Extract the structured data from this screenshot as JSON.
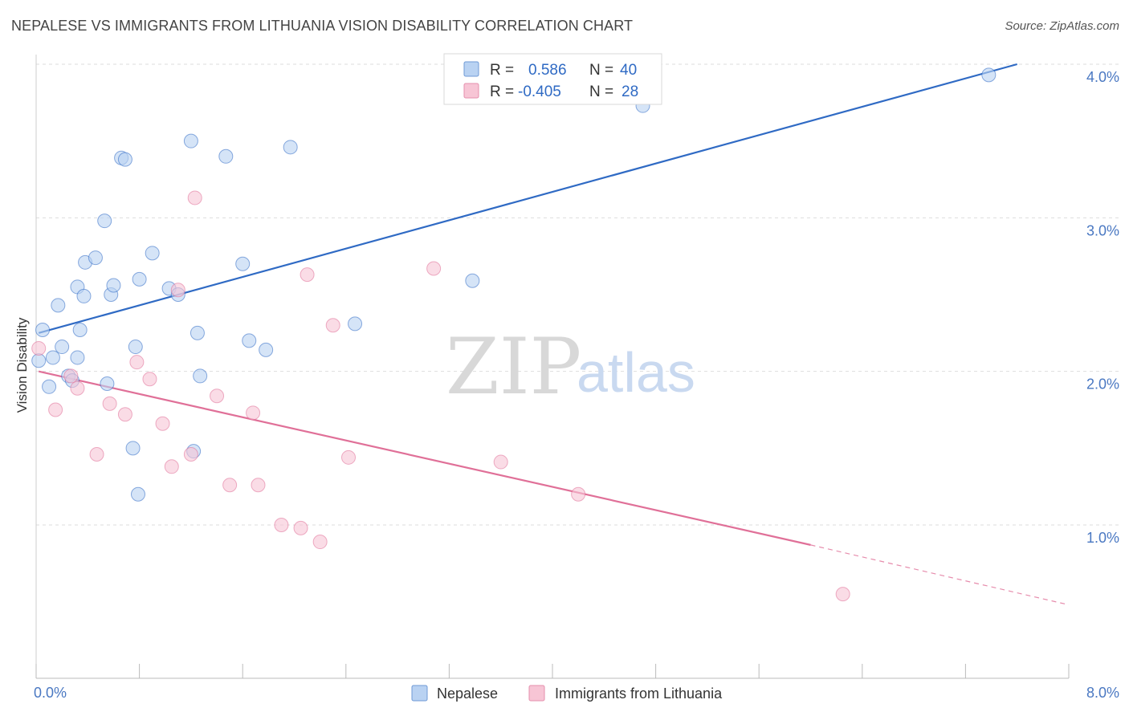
{
  "title": "NEPALESE VS IMMIGRANTS FROM LITHUANIA VISION DISABILITY CORRELATION CHART",
  "source": "Source: ZipAtlas.com",
  "watermark": {
    "zip": "ZIP",
    "atlas": "atlas"
  },
  "colors": {
    "blue": "#2f6ac4",
    "blue_fill": "#b9d2f2",
    "pink": "#e07098",
    "pink_fill": "#f7c5d5",
    "grid": "#dddddd"
  },
  "chart_data": {
    "type": "scatter",
    "xlabel": "",
    "ylabel": "Vision Disability",
    "xlim": [
      0,
      8
    ],
    "ylim": [
      0,
      4.1
    ],
    "x_tick_labels": [
      {
        "value": 0,
        "label": "0.0%"
      },
      {
        "value": 8,
        "label": "8.0%"
      }
    ],
    "y_ticks": [
      {
        "value": 1,
        "label": "1.0%"
      },
      {
        "value": 2,
        "label": "2.0%"
      },
      {
        "value": 3,
        "label": "3.0%"
      },
      {
        "value": 4,
        "label": "4.0%"
      }
    ],
    "legend": {
      "entries": [
        {
          "r_label": "R =",
          "r_value": "0.586",
          "n_label": "N =",
          "n_value": "40"
        },
        {
          "r_label": "R =",
          "r_value": "-0.405",
          "n_label": "N =",
          "n_value": "28"
        }
      ]
    },
    "series": [
      {
        "name": "Nepalese",
        "color": "#2f6ac4",
        "fill": "#b9d2f2",
        "trend": {
          "x0": 0.02,
          "y0": 2.25,
          "x1": 7.6,
          "y1": 4.0
        },
        "points": [
          [
            0.02,
            2.07
          ],
          [
            0.05,
            2.27
          ],
          [
            0.1,
            1.9
          ],
          [
            0.13,
            2.09
          ],
          [
            0.17,
            2.43
          ],
          [
            0.2,
            2.16
          ],
          [
            0.25,
            1.97
          ],
          [
            0.28,
            1.94
          ],
          [
            0.32,
            2.09
          ],
          [
            0.34,
            2.27
          ],
          [
            0.38,
            2.71
          ],
          [
            0.32,
            2.55
          ],
          [
            0.37,
            2.49
          ],
          [
            0.46,
            2.74
          ],
          [
            0.53,
            2.98
          ],
          [
            0.58,
            2.5
          ],
          [
            0.6,
            2.56
          ],
          [
            0.66,
            3.39
          ],
          [
            0.69,
            3.38
          ],
          [
            0.77,
            2.16
          ],
          [
            0.8,
            2.6
          ],
          [
            0.9,
            2.77
          ],
          [
            1.03,
            2.54
          ],
          [
            1.1,
            2.5
          ],
          [
            1.2,
            3.5
          ],
          [
            1.25,
            2.25
          ],
          [
            1.27,
            1.97
          ],
          [
            1.47,
            3.4
          ],
          [
            1.6,
            2.7
          ],
          [
            1.78,
            2.14
          ],
          [
            1.65,
            2.2
          ],
          [
            1.97,
            3.46
          ],
          [
            2.47,
            2.31
          ],
          [
            3.38,
            2.59
          ],
          [
            4.7,
            3.73
          ],
          [
            7.38,
            3.93
          ],
          [
            0.75,
            1.5
          ],
          [
            0.79,
            1.2
          ],
          [
            1.22,
            1.48
          ],
          [
            0.55,
            1.92
          ]
        ]
      },
      {
        "name": "Immigrants from Lithuania",
        "color": "#e07098",
        "fill": "#f7c5d5",
        "trend": {
          "x0": 0.02,
          "y0": 2.0,
          "x1": 6.0,
          "y1": 0.87
        },
        "trend_dash": {
          "x0": 6.0,
          "y0": 0.87,
          "x1": 8.0,
          "y1": 0.48
        },
        "points": [
          [
            0.02,
            2.15
          ],
          [
            0.15,
            1.75
          ],
          [
            0.27,
            1.97
          ],
          [
            0.32,
            1.89
          ],
          [
            0.47,
            1.46
          ],
          [
            0.57,
            1.79
          ],
          [
            0.69,
            1.72
          ],
          [
            0.78,
            2.06
          ],
          [
            0.88,
            1.95
          ],
          [
            0.98,
            1.66
          ],
          [
            1.05,
            1.38
          ],
          [
            1.1,
            2.53
          ],
          [
            1.2,
            1.46
          ],
          [
            1.23,
            3.13
          ],
          [
            1.4,
            1.84
          ],
          [
            1.5,
            1.26
          ],
          [
            1.68,
            1.73
          ],
          [
            1.72,
            1.26
          ],
          [
            1.9,
            1.0
          ],
          [
            2.05,
            0.98
          ],
          [
            2.1,
            2.63
          ],
          [
            2.2,
            0.89
          ],
          [
            2.3,
            2.3
          ],
          [
            2.42,
            1.44
          ],
          [
            3.08,
            2.67
          ],
          [
            3.6,
            1.41
          ],
          [
            4.2,
            1.2
          ],
          [
            6.25,
            0.55
          ]
        ]
      }
    ]
  }
}
